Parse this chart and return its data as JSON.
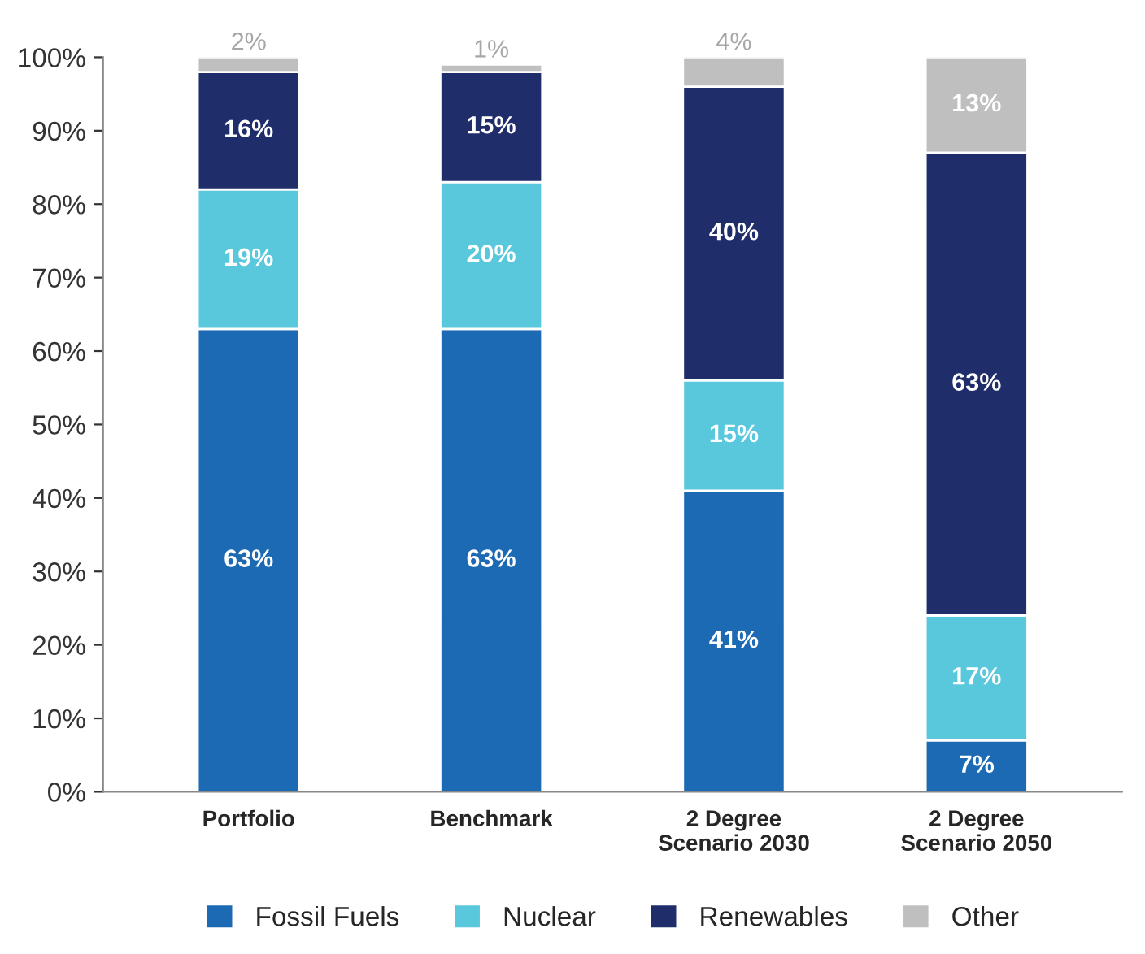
{
  "chart_data": {
    "type": "bar",
    "stacked": true,
    "categories": [
      "Portfolio",
      "Benchmark",
      "2 Degree\nScenario 2030",
      "2 Degree\nScenario 2050"
    ],
    "series": [
      {
        "name": "Fossil Fuels",
        "color": "#1c6ab4",
        "values": [
          63,
          63,
          41,
          7
        ],
        "value_labels": [
          "63%",
          "63%",
          "41%",
          "7%"
        ]
      },
      {
        "name": "Nuclear",
        "color": "#5ac8dc",
        "values": [
          19,
          20,
          15,
          17
        ],
        "value_labels": [
          "19%",
          "20%",
          "15%",
          "17%"
        ]
      },
      {
        "name": "Renewables",
        "color": "#1f2d6a",
        "values": [
          16,
          15,
          40,
          63
        ],
        "value_labels": [
          "16%",
          "15%",
          "40%",
          "63%"
        ]
      },
      {
        "name": "Other",
        "color": "#bfbfbf",
        "values": [
          2,
          1,
          4,
          13
        ],
        "value_labels": [
          "2%",
          "1%",
          "4%",
          "13%"
        ]
      }
    ],
    "ylim": [
      0,
      100
    ],
    "yticks": [
      {
        "value": 0,
        "label": "0%"
      },
      {
        "value": 10,
        "label": "10%"
      },
      {
        "value": 20,
        "label": "20%"
      },
      {
        "value": 30,
        "label": "30%"
      },
      {
        "value": 40,
        "label": "40%"
      },
      {
        "value": 50,
        "label": "50%"
      },
      {
        "value": 60,
        "label": "60%"
      },
      {
        "value": 70,
        "label": "70%"
      },
      {
        "value": 80,
        "label": "80%"
      },
      {
        "value": 90,
        "label": "90%"
      },
      {
        "value": 100,
        "label": "100%"
      }
    ],
    "grid": false,
    "legend": "bottom"
  }
}
